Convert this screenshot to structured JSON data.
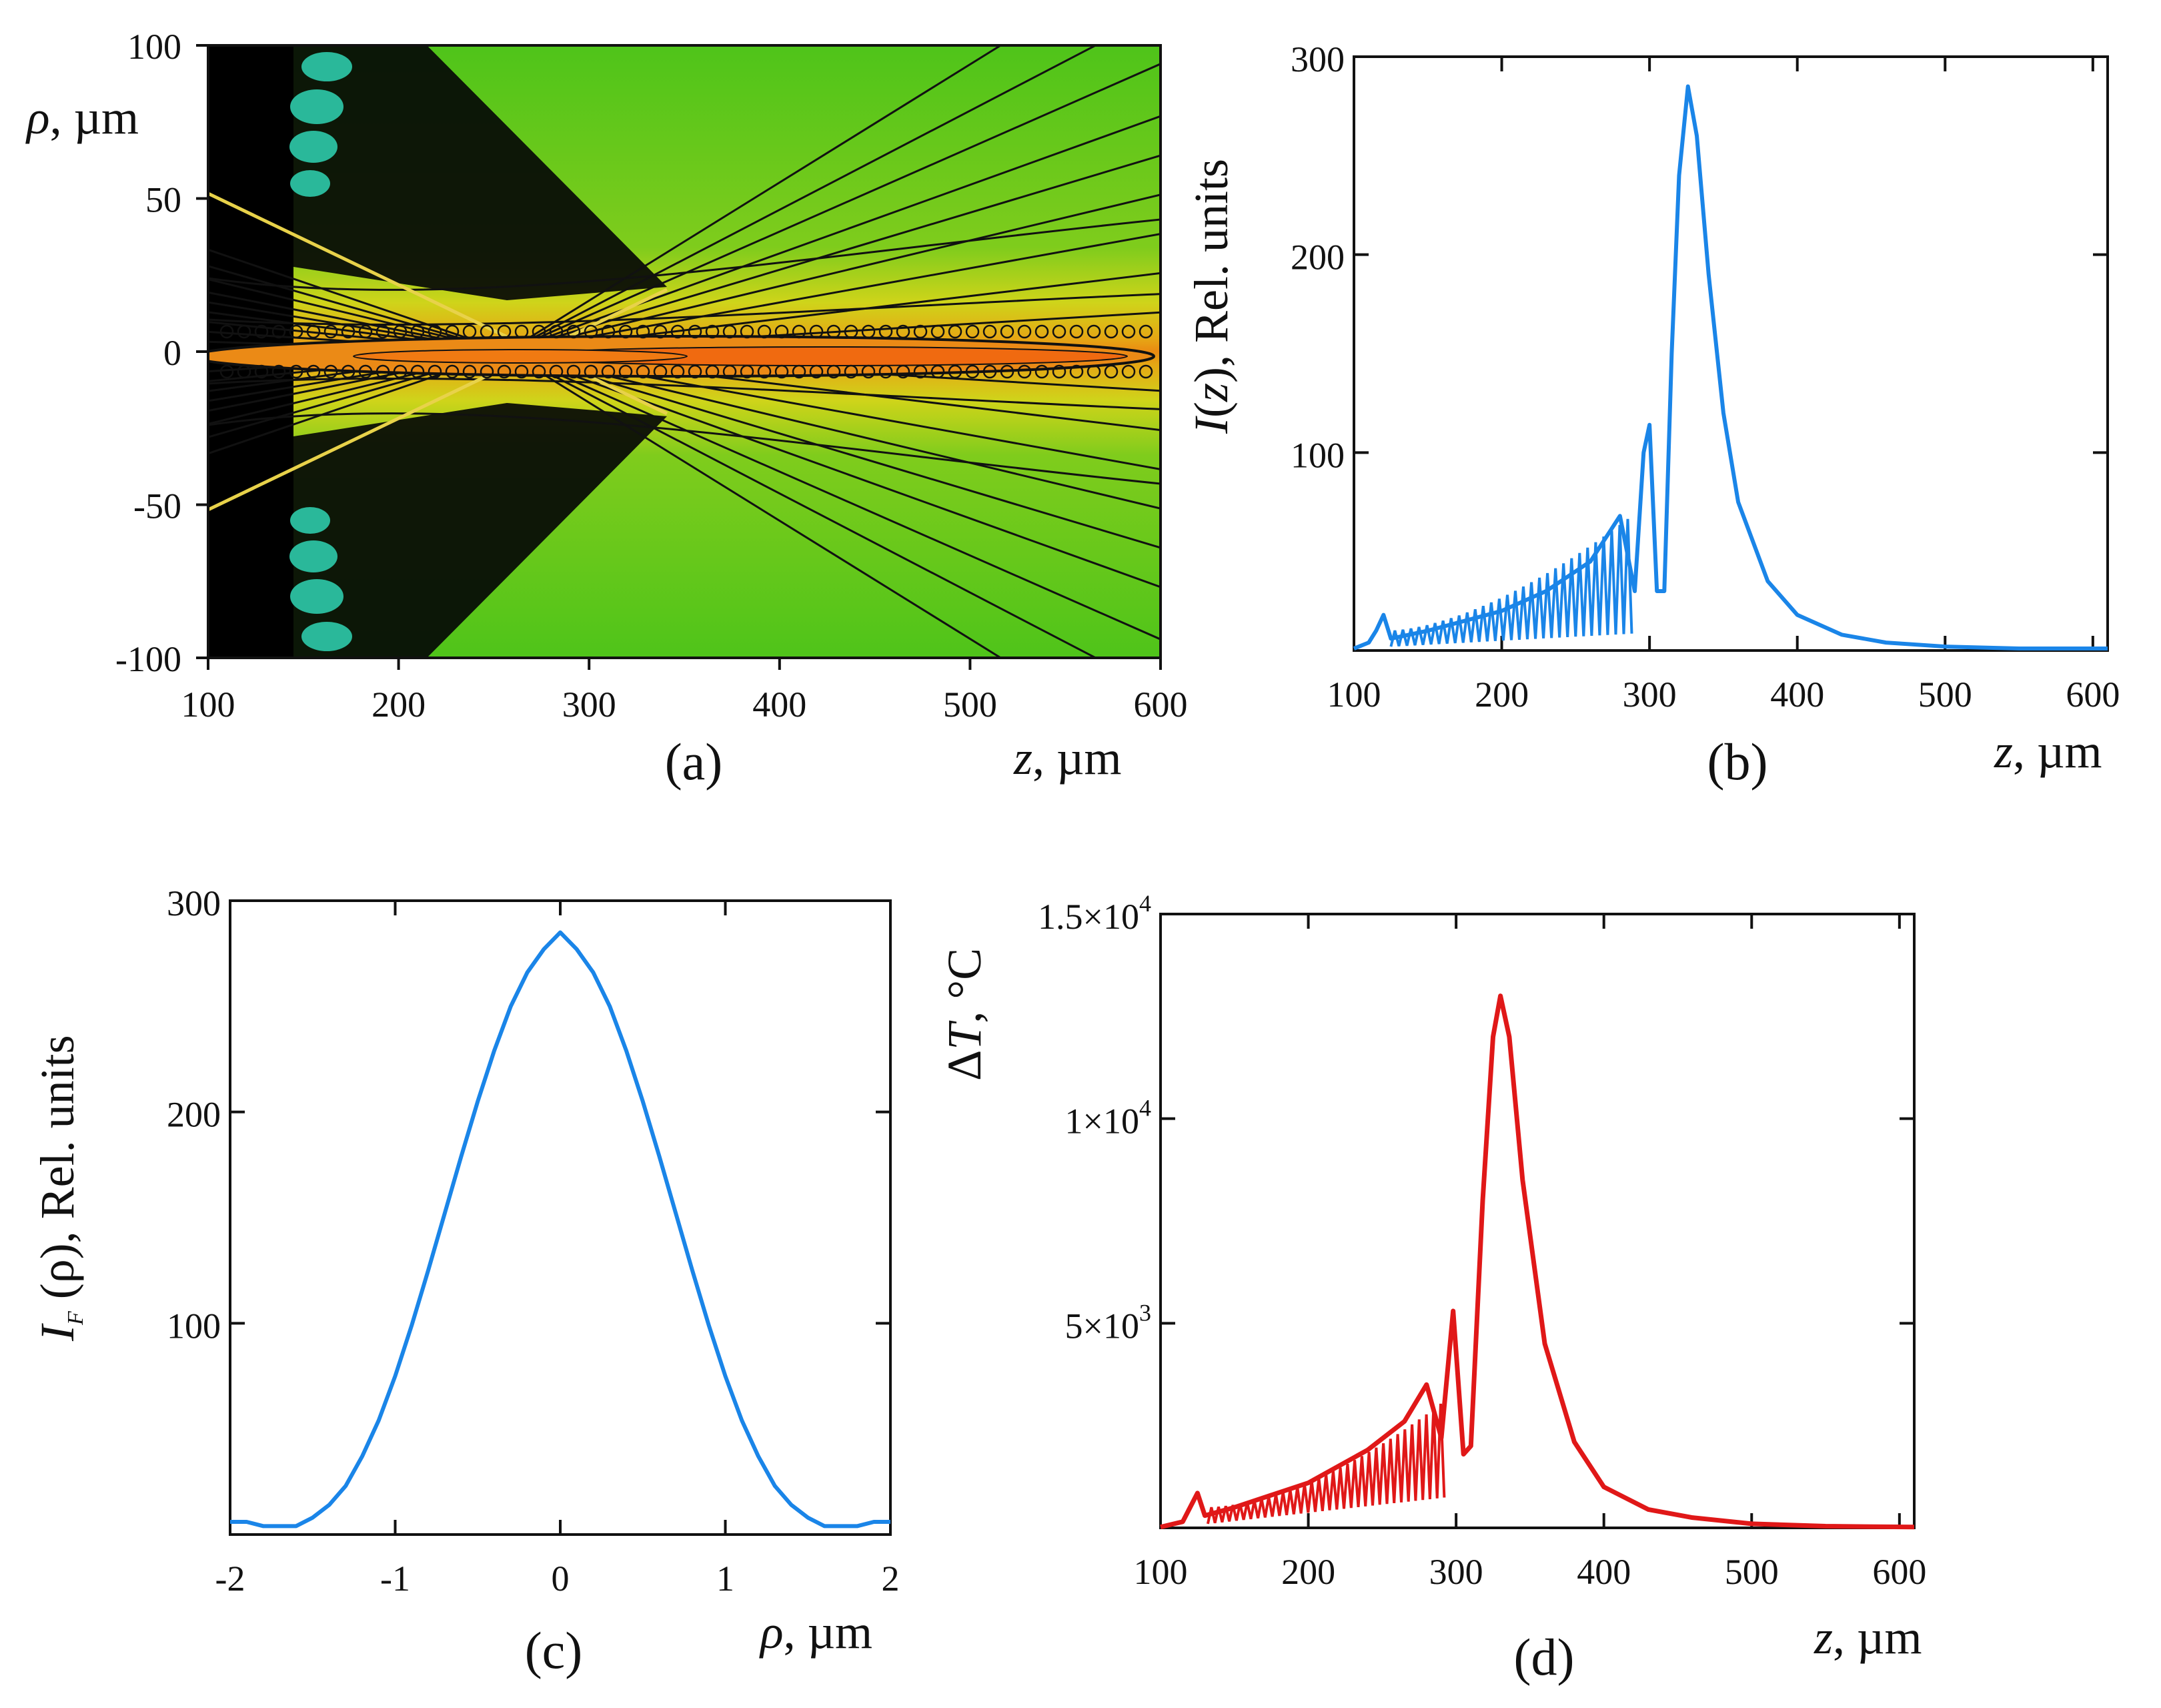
{
  "chart_data": [
    {
      "id": "a",
      "type": "heatmap",
      "panel_label": "(a)",
      "description_kind": "contour map of intensity in rho-z plane",
      "xlabel": {
        "italic": "z",
        "rest": ", µm"
      },
      "ylabel": {
        "italic": "ρ",
        "rest": ", µm"
      },
      "xlim": [
        100,
        600
      ],
      "ylim": [
        -100,
        100
      ],
      "xticks": [
        100,
        200,
        300,
        400,
        500,
        600
      ],
      "xtick_labels": [
        "100",
        "200",
        "300",
        "400",
        "500",
        "600"
      ],
      "yticks": [
        100,
        50,
        0,
        -50,
        -100
      ],
      "ytick_labels": [
        "100",
        "50",
        "0",
        "-50",
        "-100"
      ],
      "focal_region": {
        "z_start": 100,
        "z_end": 595,
        "rho_halfwidth_max": 8
      },
      "colors": {
        "dark": "#000000",
        "green": "#3fc21a",
        "lightgreen": "#8ed21c",
        "yellow": "#d8d818",
        "orange": "#e79a12",
        "red": "#f06010",
        "teal": "#2ab89a"
      }
    },
    {
      "id": "b",
      "type": "line",
      "panel_label": "(b)",
      "xlabel": {
        "italic": "z",
        "rest": ", µm"
      },
      "ylabel": {
        "pre": "",
        "italic": "I",
        "mid": "(",
        "italic2": "z",
        "rest": "), Rel. units"
      },
      "xlim": [
        100,
        610
      ],
      "ylim": [
        0,
        300
      ],
      "xticks": [
        100,
        200,
        300,
        400,
        500,
        600
      ],
      "xtick_labels": [
        "100",
        "200",
        "300",
        "400",
        "500",
        "600"
      ],
      "yticks": [
        100,
        200,
        300
      ],
      "ytick_labels": [
        "100",
        "200",
        "300"
      ],
      "line_color": "#1a85e8",
      "peaks": [
        {
          "z": 300,
          "value": 114
        },
        {
          "z": 326,
          "value": 285
        }
      ],
      "series": [
        {
          "name": "I(z)",
          "x": [
            100,
            110,
            115,
            120,
            125,
            150,
            200,
            230,
            260,
            280,
            290,
            296,
            300,
            305,
            310,
            315,
            320,
            326,
            332,
            340,
            350,
            360,
            380,
            400,
            430,
            460,
            500,
            550,
            610
          ],
          "y": [
            1,
            4,
            10,
            18,
            6,
            10,
            20,
            30,
            45,
            68,
            30,
            100,
            114,
            30,
            30,
            150,
            240,
            285,
            260,
            190,
            120,
            75,
            35,
            18,
            8,
            4,
            2,
            1,
            1
          ]
        }
      ]
    },
    {
      "id": "c",
      "type": "line",
      "panel_label": "(c)",
      "xlabel": {
        "italic": "ρ",
        "rest": ", µm"
      },
      "ylabel": {
        "italic": "I",
        "sub": "F",
        "rest": " (ρ), Rel. units"
      },
      "xlim": [
        -2,
        2
      ],
      "ylim": [
        0,
        300
      ],
      "xticks": [
        -2,
        -1,
        0,
        1,
        2
      ],
      "xtick_labels": [
        "-2",
        "-1",
        "0",
        "1",
        "2"
      ],
      "yticks": [
        100,
        200,
        300
      ],
      "ytick_labels": [
        "100",
        "200",
        "300"
      ],
      "line_color": "#1a85e8",
      "series": [
        {
          "name": "I_F(rho)",
          "x": [
            -2.0,
            -1.9,
            -1.8,
            -1.7,
            -1.6,
            -1.5,
            -1.4,
            -1.3,
            -1.2,
            -1.1,
            -1.0,
            -0.9,
            -0.8,
            -0.7,
            -0.6,
            -0.5,
            -0.4,
            -0.3,
            -0.2,
            -0.1,
            0.0,
            0.1,
            0.2,
            0.3,
            0.4,
            0.5,
            0.6,
            0.7,
            0.8,
            0.9,
            1.0,
            1.1,
            1.2,
            1.3,
            1.4,
            1.5,
            1.6,
            1.7,
            1.8,
            1.9,
            2.0
          ],
          "y": [
            6,
            6,
            4,
            4,
            4,
            8,
            14,
            23,
            37,
            54,
            75,
            99,
            125,
            152,
            179,
            205,
            229,
            250,
            266,
            277,
            285,
            277,
            266,
            250,
            229,
            205,
            179,
            152,
            125,
            99,
            75,
            54,
            37,
            23,
            14,
            8,
            4,
            4,
            4,
            6,
            6
          ]
        }
      ]
    },
    {
      "id": "d",
      "type": "line",
      "panel_label": "(d)",
      "xlabel": {
        "italic": "z",
        "rest": ", µm"
      },
      "ylabel": {
        "pre": "Δ",
        "italic": "T",
        "rest": ", °C"
      },
      "xlim": [
        100,
        610
      ],
      "ylim": [
        0,
        15000
      ],
      "xticks": [
        100,
        200,
        300,
        400,
        500,
        600
      ],
      "xtick_labels": [
        "100",
        "200",
        "300",
        "400",
        "500",
        "600"
      ],
      "yticks": [
        5000,
        10000,
        15000
      ],
      "ytick_labels": [
        {
          "base": "5×10",
          "exp": "3"
        },
        {
          "base": "1×10",
          "exp": "4"
        },
        {
          "base": "1.5×10",
          "exp": "4"
        }
      ],
      "line_color": "#e01818",
      "peaks": [
        {
          "z": 298,
          "value": 5300
        },
        {
          "z": 330,
          "value": 13000
        }
      ],
      "series": [
        {
          "name": "delta_T(z)",
          "x": [
            100,
            115,
            125,
            130,
            150,
            200,
            240,
            265,
            280,
            290,
            298,
            305,
            310,
            318,
            325,
            330,
            336,
            345,
            360,
            380,
            400,
            430,
            460,
            500,
            550,
            610
          ],
          "y": [
            20,
            150,
            850,
            300,
            500,
            1100,
            1900,
            2600,
            3500,
            2200,
            5300,
            1800,
            2000,
            8000,
            12000,
            13000,
            12000,
            8500,
            4500,
            2100,
            1000,
            450,
            250,
            100,
            40,
            20
          ]
        }
      ]
    }
  ]
}
